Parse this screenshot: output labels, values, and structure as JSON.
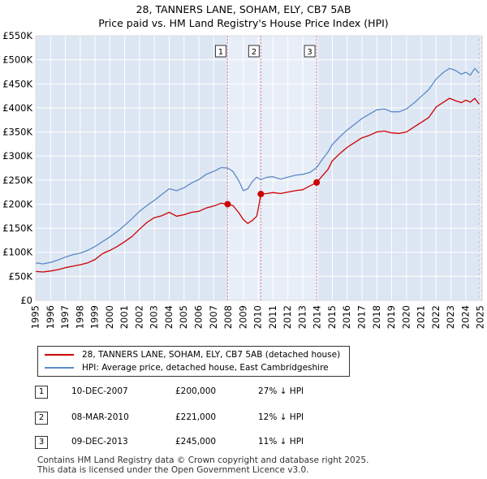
{
  "chart_data": {
    "type": "line",
    "title": "28, TANNERS LANE, SOHAM, ELY, CB7 5AB",
    "subtitle": "Price paid vs. HM Land Registry's House Price Index (HPI)",
    "xlabel": "",
    "ylabel": "",
    "xlim": [
      1995,
      2025.1
    ],
    "ylim": [
      0,
      550000
    ],
    "grid": true,
    "y_ticks": [
      0,
      50000,
      100000,
      150000,
      200000,
      250000,
      300000,
      350000,
      400000,
      450000,
      500000,
      550000
    ],
    "y_tick_labels": [
      "£0",
      "£50K",
      "£100K",
      "£150K",
      "£200K",
      "£250K",
      "£300K",
      "£350K",
      "£400K",
      "£450K",
      "£500K",
      "£550K"
    ],
    "x_ticks": [
      1995,
      1996,
      1997,
      1998,
      1999,
      2000,
      2001,
      2002,
      2003,
      2004,
      2005,
      2006,
      2007,
      2008,
      2009,
      2010,
      2011,
      2012,
      2013,
      2014,
      2015,
      2016,
      2017,
      2018,
      2019,
      2020,
      2021,
      2022,
      2023,
      2024,
      2025
    ],
    "x_tick_labels": [
      "1995",
      "1996",
      "1997",
      "1998",
      "1999",
      "2000",
      "2001",
      "2002",
      "2003",
      "2004",
      "2005",
      "2006",
      "2007",
      "2008",
      "2009",
      "2010",
      "2011",
      "2012",
      "2013",
      "2014",
      "2015",
      "2016",
      "2017",
      "2018",
      "2019",
      "2020",
      "2021",
      "2022",
      "2023",
      "2024",
      "2025"
    ],
    "series": [
      {
        "name": "28, TANNERS LANE, SOHAM, ELY, CB7 5AB (detached house)",
        "color": "#cc0000",
        "x": [
          1995.0,
          1995.5,
          1996.0,
          1996.5,
          1997.0,
          1997.5,
          1998.0,
          1998.5,
          1999.0,
          1999.5,
          2000.0,
          2000.5,
          2001.0,
          2001.5,
          2002.0,
          2002.5,
          2003.0,
          2003.5,
          2004.0,
          2004.5,
          2005.0,
          2005.5,
          2006.0,
          2006.5,
          2007.0,
          2007.5,
          2007.94,
          2008.3,
          2008.7,
          2009.0,
          2009.3,
          2009.6,
          2009.9,
          2010.0,
          2010.18,
          2010.6,
          2011.0,
          2011.5,
          2012.0,
          2012.5,
          2013.0,
          2013.5,
          2013.94,
          2014.3,
          2014.7,
          2015.0,
          2015.5,
          2016.0,
          2016.5,
          2017.0,
          2017.5,
          2018.0,
          2018.5,
          2019.0,
          2019.5,
          2020.0,
          2020.5,
          2021.0,
          2021.5,
          2022.0,
          2022.5,
          2022.9,
          2023.3,
          2023.7,
          2024.0,
          2024.3,
          2024.6,
          2024.9
        ],
        "values": [
          60000,
          59000,
          61000,
          64000,
          68000,
          71000,
          74000,
          78000,
          85000,
          97000,
          104000,
          112000,
          122000,
          133000,
          148000,
          162000,
          172000,
          176000,
          183000,
          175000,
          178000,
          183000,
          185000,
          192000,
          196000,
          202000,
          200000,
          197000,
          182000,
          168000,
          160000,
          166000,
          175000,
          190000,
          221000,
          222000,
          224000,
          222000,
          225000,
          228000,
          230000,
          238000,
          245000,
          258000,
          272000,
          290000,
          305000,
          318000,
          328000,
          338000,
          343000,
          350000,
          352000,
          348000,
          347000,
          350000,
          360000,
          370000,
          380000,
          402000,
          412000,
          420000,
          415000,
          411000,
          416000,
          412000,
          420000,
          408000
        ]
      },
      {
        "name": "HPI: Average price, detached house, East Cambridgeshire",
        "color": "#5b8ac6",
        "x": [
          1995.0,
          1995.5,
          1996.0,
          1996.5,
          1997.0,
          1997.5,
          1998.0,
          1998.5,
          1999.0,
          1999.5,
          2000.0,
          2000.5,
          2001.0,
          2001.5,
          2002.0,
          2002.5,
          2003.0,
          2003.5,
          2004.0,
          2004.5,
          2005.0,
          2005.5,
          2006.0,
          2006.5,
          2007.0,
          2007.5,
          2007.94,
          2008.3,
          2008.7,
          2009.0,
          2009.3,
          2009.6,
          2009.9,
          2010.18,
          2010.6,
          2011.0,
          2011.5,
          2012.0,
          2012.5,
          2013.0,
          2013.5,
          2013.94,
          2014.3,
          2014.7,
          2015.0,
          2015.5,
          2016.0,
          2016.5,
          2017.0,
          2017.5,
          2018.0,
          2018.5,
          2019.0,
          2019.5,
          2020.0,
          2020.5,
          2021.0,
          2021.5,
          2022.0,
          2022.5,
          2022.9,
          2023.3,
          2023.7,
          2024.0,
          2024.3,
          2024.6,
          2024.9
        ],
        "values": [
          78000,
          76000,
          79000,
          84000,
          90000,
          95000,
          98000,
          104000,
          112000,
          122000,
          132000,
          143000,
          156000,
          170000,
          185000,
          197000,
          208000,
          220000,
          232000,
          228000,
          234000,
          244000,
          251000,
          262000,
          268000,
          276000,
          275000,
          268000,
          248000,
          228000,
          232000,
          247000,
          256000,
          251000,
          256000,
          257000,
          252000,
          256000,
          260000,
          262000,
          266000,
          276000,
          292000,
          308000,
          324000,
          340000,
          354000,
          366000,
          378000,
          387000,
          396000,
          398000,
          392000,
          392000,
          398000,
          410000,
          424000,
          438000,
          460000,
          474000,
          482000,
          478000,
          470000,
          474000,
          468000,
          482000,
          472000
        ]
      }
    ],
    "sales": [
      {
        "label": "1",
        "x": 2007.94,
        "value": 200000,
        "date": "10-DEC-2007",
        "price": "£200,000",
        "hpi": "27% ↓ HPI"
      },
      {
        "label": "2",
        "x": 2010.18,
        "value": 221000,
        "date": "08-MAR-2010",
        "price": "£221,000",
        "hpi": "12% ↓ HPI"
      },
      {
        "label": "3",
        "x": 2013.94,
        "value": 245000,
        "date": "09-DEC-2013",
        "price": "£245,000",
        "hpi": "11% ↓ HPI"
      }
    ],
    "colors": {
      "plot_background": "#dde6f3",
      "highlight": "#e8eef8",
      "grid": "#ffffff",
      "hatch": "#9aa4b3",
      "sale_line": "#e07a8a"
    },
    "footer": [
      "Contains HM Land Registry data © Crown copyright and database right 2025.",
      "This data is licensed under the Open Government Licence v3.0."
    ]
  }
}
